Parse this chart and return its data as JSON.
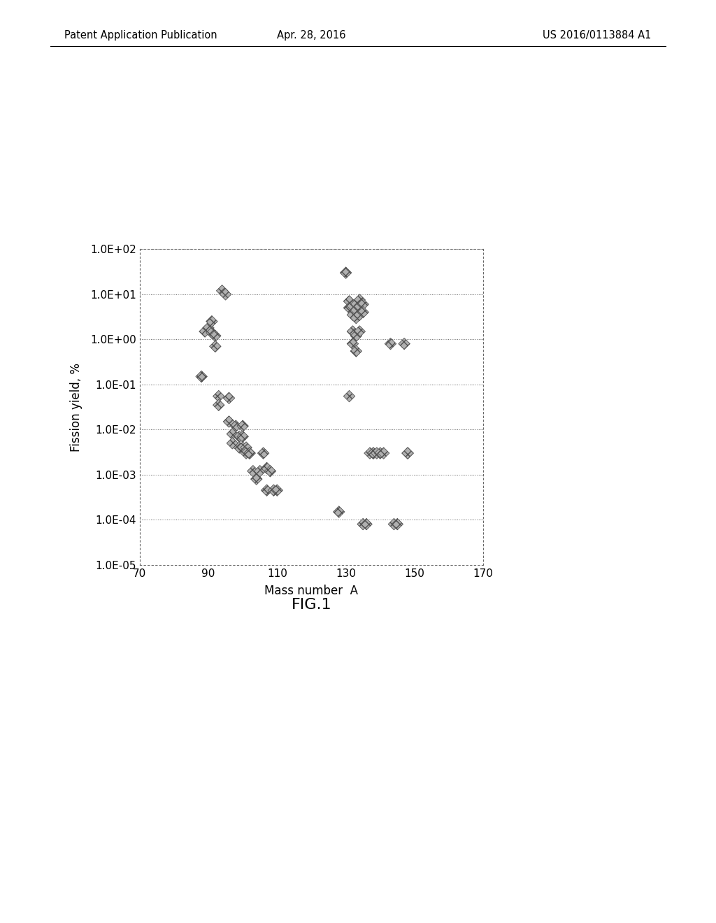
{
  "title": "",
  "xlabel": "Mass number  A",
  "ylabel": "Fission yield, %",
  "xlim": [
    70,
    170
  ],
  "ylim_log": [
    1e-05,
    100.0
  ],
  "xticks": [
    70,
    90,
    110,
    130,
    150,
    170
  ],
  "ytick_labels": [
    "1.0E-05",
    "1.0E-04",
    "1.0E-03",
    "1.0E-02",
    "1.0E-01",
    "1.0E+00",
    "1.0E+01",
    "1.0E+02"
  ],
  "fig1_label": "FIG.1",
  "header_left": "Patent Application Publication",
  "header_center": "Apr. 28, 2016",
  "header_right": "US 2016/0113884 A1",
  "scatter_data": [
    [
      88,
      0.15
    ],
    [
      89,
      1.5
    ],
    [
      90,
      1.8
    ],
    [
      91,
      2.5
    ],
    [
      91,
      1.4
    ],
    [
      92,
      1.2
    ],
    [
      92,
      0.7
    ],
    [
      93,
      0.055
    ],
    [
      93,
      0.035
    ],
    [
      94,
      12.0
    ],
    [
      95,
      10.0
    ],
    [
      96,
      0.05
    ],
    [
      96,
      0.015
    ],
    [
      97,
      0.008
    ],
    [
      97,
      0.005
    ],
    [
      98,
      0.012
    ],
    [
      99,
      0.007
    ],
    [
      99,
      0.004
    ],
    [
      100,
      0.012
    ],
    [
      100,
      0.007
    ],
    [
      100,
      0.004
    ],
    [
      101,
      0.004
    ],
    [
      101,
      0.003
    ],
    [
      102,
      0.003
    ],
    [
      102,
      0.003
    ],
    [
      103,
      0.0012
    ],
    [
      104,
      0.0008
    ],
    [
      105,
      0.0012
    ],
    [
      106,
      0.003
    ],
    [
      107,
      0.0014
    ],
    [
      107,
      0.00045
    ],
    [
      108,
      0.0012
    ],
    [
      109,
      0.00045
    ],
    [
      110,
      0.00045
    ],
    [
      128,
      0.00015
    ],
    [
      130,
      30.0
    ],
    [
      131,
      7.0
    ],
    [
      131,
      5.0
    ],
    [
      131,
      0.055
    ],
    [
      132,
      5.5
    ],
    [
      132,
      3.5
    ],
    [
      132,
      1.5
    ],
    [
      132,
      0.8
    ],
    [
      133,
      6.0
    ],
    [
      133,
      4.5
    ],
    [
      133,
      3.0
    ],
    [
      133,
      1.2
    ],
    [
      133,
      0.55
    ],
    [
      134,
      7.5
    ],
    [
      134,
      5.5
    ],
    [
      134,
      3.5
    ],
    [
      134,
      1.5
    ],
    [
      135,
      6.0
    ],
    [
      135,
      4.0
    ],
    [
      135,
      8e-05
    ],
    [
      136,
      8e-05
    ],
    [
      137,
      0.003
    ],
    [
      138,
      0.003
    ],
    [
      138,
      0.003
    ],
    [
      139,
      0.003
    ],
    [
      140,
      0.003
    ],
    [
      141,
      0.003
    ],
    [
      143,
      0.8
    ],
    [
      144,
      8e-05
    ],
    [
      145,
      8e-05
    ],
    [
      147,
      0.8
    ],
    [
      148,
      0.003
    ],
    [
      148,
      0.003
    ]
  ]
}
